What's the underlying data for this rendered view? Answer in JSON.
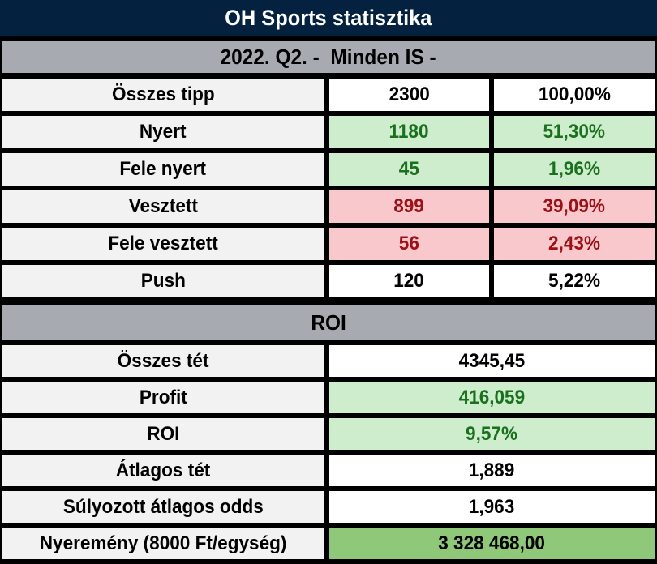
{
  "header": {
    "title": "OH Sports statisztika",
    "period": "2022. Q2. -  Minden IS -"
  },
  "stats": {
    "rows": [
      {
        "label": "Összes tipp",
        "count": "2300",
        "percent": "100,00%",
        "state": "neutral"
      },
      {
        "label": "Nyert",
        "count": "1180",
        "percent": "51,30%",
        "state": "positive"
      },
      {
        "label": "Fele nyert",
        "count": "45",
        "percent": "1,96%",
        "state": "positive"
      },
      {
        "label": "Vesztett",
        "count": "899",
        "percent": "39,09%",
        "state": "negative"
      },
      {
        "label": "Fele vesztett",
        "count": "56",
        "percent": "2,43%",
        "state": "negative"
      },
      {
        "label": "Push",
        "count": "120",
        "percent": "5,22%",
        "state": "neutral"
      }
    ]
  },
  "roi": {
    "section_title": "ROI",
    "rows": [
      {
        "label": "Összes tét",
        "value": "4345,45",
        "state": "neutral"
      },
      {
        "label": "Profit",
        "value": "416,059",
        "state": "positive"
      },
      {
        "label": "ROI",
        "value": "9,57%",
        "state": "positive"
      },
      {
        "label": "Átlagos tét",
        "value": "1,889",
        "state": "neutral"
      },
      {
        "label": "Súlyozott átlagos odds",
        "value": "1,963",
        "state": "neutral"
      },
      {
        "label": "Nyeremény (8000 Ft/egység)",
        "value": "3 328 468,00",
        "state": "total"
      }
    ]
  },
  "colors": {
    "header-bg": "#04223f",
    "header-text": "#ffffff",
    "section-bg": "#a7abb1",
    "label-bg": "#f2f2f2",
    "positive-bg": "#cdedcc",
    "positive-text": "#1a701d",
    "negative-bg": "#f9c8cc",
    "negative-text": "#9c1016",
    "total-bg": "#90c87a",
    "border": "#000000"
  }
}
